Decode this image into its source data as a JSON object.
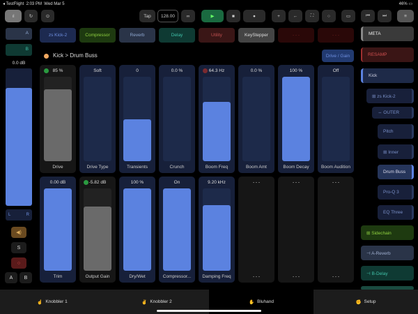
{
  "status": {
    "app": "◂ TestFlight",
    "time": "2:03 PM",
    "date": "Wed Mar 5",
    "battery": "46%"
  },
  "toolbar": {
    "tap": "Tap",
    "bpm": "128.00",
    "link": "∞",
    "play": "▶",
    "stop": "■",
    "record": "●",
    "plus": "+",
    "back": "←",
    "fullscreen": "⛶",
    "circle": "○",
    "screen": "▭",
    "prev": "⏮",
    "next": "⏭",
    "menu": "≡",
    "meter": "ıl",
    "loop": "↻",
    "settings": "⊙"
  },
  "plugins": [
    {
      "label": "zs Kick-2",
      "bg": "#1d2a50",
      "fg": "#6f8fe0"
    },
    {
      "label": "Compressor",
      "bg": "#1e3a10",
      "fg": "#8fd040"
    },
    {
      "label": "Reverb",
      "bg": "#2a3448",
      "fg": "#8fa8d0"
    },
    {
      "label": "Delay",
      "bg": "#0f3a33",
      "fg": "#40c0a8"
    },
    {
      "label": "Utility",
      "bg": "#3a1616",
      "fg": "#c05050"
    },
    {
      "label": "KeyStepper",
      "bg": "#444",
      "fg": "#ddd"
    },
    {
      "label": "- - -",
      "bg": "#2a0808",
      "fg": "#702020"
    },
    {
      "label": "- - -",
      "bg": "#2a0808",
      "fg": "#702020"
    }
  ],
  "left": {
    "a": "A",
    "b": "B",
    "gain": "0.0 dB",
    "gain_level": 0.86,
    "l": "L",
    "r": "R",
    "speaker": "◀)",
    "solo": "S",
    "rec": "○",
    "btn_a": "A",
    "btn_b": "B"
  },
  "breadcrumb": "Kick > Drum Buss",
  "page_button": "Drive / Gain",
  "row1": [
    {
      "value": "85 %",
      "label": "Drive",
      "level": 0.85,
      "gray": true,
      "dot": "#2a9a40"
    },
    {
      "value": "Soft",
      "label": "Drive Type",
      "level": 0
    },
    {
      "value": "0",
      "label": "Transients",
      "level": 0.5
    },
    {
      "value": "0.0 %",
      "label": "Crunch",
      "level": 0
    },
    {
      "value": "64.3 Hz",
      "label": "Boom Freq",
      "level": 0.7,
      "dot": "#7a2a30"
    },
    {
      "value": "0.0 %",
      "label": "Boom Amt",
      "level": 0
    },
    {
      "value": "100 %",
      "label": "Boom Decay",
      "level": 1
    },
    {
      "value": "Off",
      "label": "Boom Audition",
      "level": 0
    }
  ],
  "row2": [
    {
      "value": "0.00 dB",
      "label": "Trim",
      "level": 1
    },
    {
      "value": "-5.82 dB",
      "label": "Output Gain",
      "level": 0.78,
      "gray": true,
      "dot": "#2a9a40"
    },
    {
      "value": "100 %",
      "label": "Dry/Wet",
      "level": 1
    },
    {
      "value": "On",
      "label": "Compressor...",
      "level": 1
    },
    {
      "value": "9.20 kHz",
      "label": "Damping Freq",
      "level": 0.8
    },
    {
      "value": "- - -",
      "label": "- - -",
      "empty": true
    },
    {
      "value": "- - -",
      "label": "- - -",
      "empty": true
    },
    {
      "value": "- - -",
      "label": "- - -",
      "empty": true
    }
  ],
  "sidebar": [
    {
      "label": "META",
      "bg": "#3a3a3a",
      "fg": "#eee"
    },
    {
      "label": "RESAMP",
      "bg": "#3a1515",
      "fg": "#d05050"
    },
    {
      "label": "Kick",
      "bg": "#1e2a48",
      "fg": "#ccd"
    },
    {
      "label": "⊞ zs Kick-2",
      "bg": "#18203a",
      "fg": "#7a90c8"
    },
    {
      "label": "⇔ OUTER",
      "bg": "#18203a",
      "fg": "#7a90c8"
    },
    {
      "label": "Pitch",
      "bg": "#18203a",
      "fg": "#7a90c8"
    },
    {
      "label": "⊞ Inner",
      "bg": "#18203a",
      "fg": "#7a90c8"
    },
    {
      "label": "Drum Buss",
      "bg": "#26355a",
      "fg": "#dde"
    },
    {
      "label": "Pro-Q 3",
      "bg": "#18203a",
      "fg": "#7a90c8"
    },
    {
      "label": "EQ Three",
      "bg": "#18203a",
      "fg": "#7a90c8"
    },
    {
      "label": "⊞ Sidechain",
      "bg": "#1e3a10",
      "fg": "#8fd040"
    },
    {
      "label": "⊣ A-Reverb",
      "bg": "#2a3448",
      "fg": "#a0b0d0"
    },
    {
      "label": "⊣ B-Delay",
      "bg": "#0f3a33",
      "fg": "#40c0a8"
    }
  ],
  "tabs": [
    {
      "icon": "☝",
      "label": "Knobbler 1"
    },
    {
      "icon": "✌",
      "label": "Knobbler 2"
    },
    {
      "icon": "✋",
      "label": "Bluhand"
    },
    {
      "icon": "✊",
      "label": "Setup"
    }
  ]
}
